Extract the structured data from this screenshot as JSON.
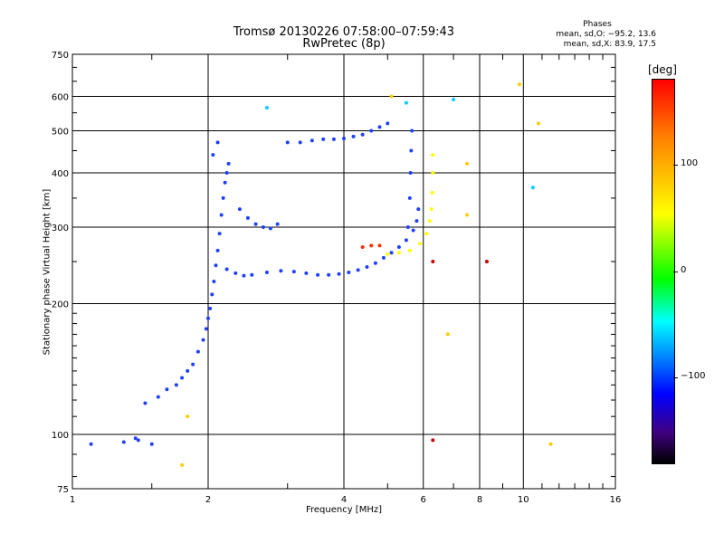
{
  "header": {
    "title_line1": "Tromsø 20130226 07:58:00–07:59:43",
    "title_line2": "RwPretec (8p)"
  },
  "phases": {
    "heading": "Phases",
    "line_o": "mean, sd,O: −95.2, 13.6",
    "line_x": "mean, sd,X: 83.9, 17.5"
  },
  "colorbar": {
    "unit": "[deg]",
    "ticks": [
      "100",
      "0",
      "−100"
    ],
    "tick_values": [
      100,
      0,
      -100
    ],
    "range": [
      -180,
      180
    ],
    "colors": [
      "#000000",
      "#400080",
      "#0000ff",
      "#0060ff",
      "#00ffff",
      "#00ff00",
      "#ffff00",
      "#ff8000",
      "#ff0000"
    ]
  },
  "chart_data": {
    "type": "scatter",
    "title": "Tromsø 20130226 07:58:00–07:59:43",
    "subtitle": "RwPretec (8p)",
    "xlabel": "Frequency [MHz]",
    "ylabel": "Stationary phase Virtual Height [km]",
    "xscale": "log",
    "yscale": "log",
    "xlim": [
      1,
      16
    ],
    "ylim": [
      75,
      750
    ],
    "xticks": [
      1,
      2,
      4,
      6,
      8,
      10,
      16
    ],
    "xtick_labels": [
      "1",
      "2",
      "4",
      "6",
      "8",
      "10",
      "16"
    ],
    "yticks": [
      75,
      100,
      200,
      300,
      400,
      500,
      600,
      750
    ],
    "ytick_labels": [
      "75",
      "100",
      "200",
      "300",
      "400",
      "500",
      "600",
      "750"
    ],
    "grid": true,
    "traces": [
      {
        "color": "#2040ff",
        "points": [
          [
            1.1,
            95
          ],
          [
            1.3,
            96
          ],
          [
            1.38,
            98
          ],
          [
            1.4,
            97
          ],
          [
            1.5,
            95
          ],
          [
            1.45,
            118
          ],
          [
            1.55,
            122
          ],
          [
            1.62,
            127
          ],
          [
            1.7,
            130
          ],
          [
            1.75,
            135
          ],
          [
            1.8,
            140
          ],
          [
            1.85,
            145
          ],
          [
            1.9,
            155
          ],
          [
            1.95,
            165
          ],
          [
            1.98,
            175
          ],
          [
            2.0,
            185
          ],
          [
            2.02,
            195
          ],
          [
            2.04,
            210
          ],
          [
            2.06,
            225
          ],
          [
            2.08,
            245
          ],
          [
            2.1,
            265
          ],
          [
            2.12,
            290
          ],
          [
            2.14,
            320
          ],
          [
            2.16,
            350
          ],
          [
            2.18,
            380
          ],
          [
            2.2,
            400
          ],
          [
            2.22,
            420
          ],
          [
            2.05,
            440
          ],
          [
            2.1,
            470
          ]
        ]
      },
      {
        "color": "#2040ff",
        "points": [
          [
            2.2,
            240
          ],
          [
            2.3,
            235
          ],
          [
            2.4,
            232
          ],
          [
            2.5,
            233
          ],
          [
            2.7,
            236
          ],
          [
            2.9,
            238
          ],
          [
            3.1,
            237
          ],
          [
            3.3,
            235
          ],
          [
            3.5,
            233
          ],
          [
            3.7,
            233
          ],
          [
            3.9,
            234
          ],
          [
            4.1,
            236
          ],
          [
            4.3,
            239
          ],
          [
            4.5,
            243
          ],
          [
            4.7,
            248
          ],
          [
            4.9,
            255
          ],
          [
            5.1,
            262
          ],
          [
            5.3,
            270
          ],
          [
            5.5,
            280
          ],
          [
            5.7,
            295
          ],
          [
            5.8,
            310
          ],
          [
            5.85,
            330
          ]
        ]
      },
      {
        "color": "#2040ff",
        "points": [
          [
            2.35,
            330
          ],
          [
            2.45,
            315
          ],
          [
            2.55,
            305
          ],
          [
            2.65,
            300
          ],
          [
            2.75,
            298
          ],
          [
            2.85,
            305
          ]
        ]
      },
      {
        "color": "#2040ff",
        "points": [
          [
            3.0,
            470
          ],
          [
            3.2,
            470
          ],
          [
            3.4,
            475
          ],
          [
            3.6,
            478
          ],
          [
            3.8,
            478
          ],
          [
            4.0,
            480
          ],
          [
            4.2,
            485
          ],
          [
            4.4,
            490
          ],
          [
            4.6,
            500
          ],
          [
            4.8,
            510
          ],
          [
            5.0,
            520
          ]
        ]
      },
      {
        "color": "#2040ff",
        "points": [
          [
            5.55,
            300
          ],
          [
            5.6,
            350
          ],
          [
            5.62,
            400
          ],
          [
            5.64,
            450
          ],
          [
            5.66,
            500
          ]
        ]
      },
      {
        "color": "#ffff00",
        "points": [
          [
            5.0,
            260
          ],
          [
            5.3,
            262
          ],
          [
            5.6,
            265
          ],
          [
            5.9,
            275
          ],
          [
            6.1,
            290
          ],
          [
            6.2,
            310
          ],
          [
            6.25,
            330
          ],
          [
            6.28,
            360
          ],
          [
            6.3,
            400
          ],
          [
            6.3,
            440
          ]
        ]
      },
      {
        "color": "#ff3000",
        "points": [
          [
            4.4,
            270
          ],
          [
            4.6,
            272
          ],
          [
            4.8,
            272
          ]
        ]
      },
      {
        "color": "#ffcc00",
        "points": [
          [
            5.1,
            600
          ],
          [
            7.5,
            420
          ],
          [
            9.8,
            640
          ],
          [
            10.8,
            520
          ],
          [
            7.5,
            320
          ],
          [
            6.8,
            170
          ],
          [
            1.75,
            85
          ],
          [
            1.8,
            110
          ],
          [
            11.5,
            95
          ]
        ]
      },
      {
        "color": "#00ccff",
        "points": [
          [
            10.5,
            370
          ],
          [
            7.0,
            590
          ],
          [
            5.5,
            580
          ],
          [
            2.7,
            565
          ]
        ]
      },
      {
        "color": "#cc0000",
        "points": [
          [
            6.3,
            97
          ],
          [
            6.3,
            250
          ],
          [
            8.3,
            250
          ]
        ]
      }
    ]
  }
}
